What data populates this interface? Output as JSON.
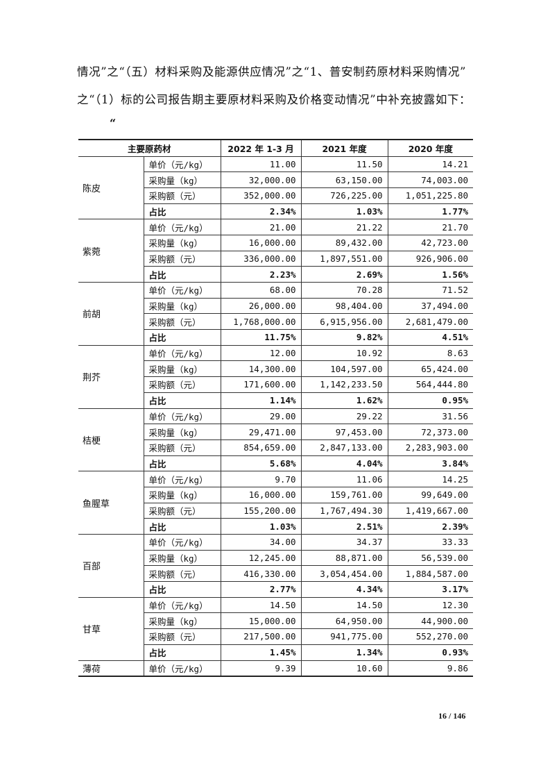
{
  "intro": {
    "line1": "情况”之“（五）材料采购及能源供应情况”之“1、普安制药原材料采购情况”",
    "line2": "之“（1）标的公司报告期主要原材料采购及价格变动情况”中补充披露如下：",
    "open_quote": "“"
  },
  "table": {
    "headers": [
      "主要原药材",
      "2022 年 1-3 月",
      "2021 年度",
      "2020 年度"
    ],
    "groups": [
      {
        "name": "陈皮",
        "rows": [
          {
            "metric": "单价（元/kg）",
            "values": [
              "11.00",
              "11.50",
              "14.21"
            ]
          },
          {
            "metric": "采购量（kg）",
            "values": [
              "32,000.00",
              "63,150.00",
              "74,003.00"
            ]
          },
          {
            "metric": "采购额（元）",
            "values": [
              "352,000.00",
              "726,225.00",
              "1,051,225.80"
            ]
          },
          {
            "metric": "占比",
            "values": [
              "2.34%",
              "1.03%",
              "1.77%"
            ],
            "bold": true
          }
        ]
      },
      {
        "name": "紫菀",
        "rows": [
          {
            "metric": "单价（元/kg）",
            "values": [
              "21.00",
              "21.22",
              "21.70"
            ]
          },
          {
            "metric": "采购量（kg）",
            "values": [
              "16,000.00",
              "89,432.00",
              "42,723.00"
            ]
          },
          {
            "metric": "采购额（元）",
            "values": [
              "336,000.00",
              "1,897,551.00",
              "926,906.00"
            ]
          },
          {
            "metric": "占比",
            "values": [
              "2.23%",
              "2.69%",
              "1.56%"
            ],
            "bold": true
          }
        ]
      },
      {
        "name": "前胡",
        "rows": [
          {
            "metric": "单价（元/kg）",
            "values": [
              "68.00",
              "70.28",
              "71.52"
            ]
          },
          {
            "metric": "采购量（kg）",
            "values": [
              "26,000.00",
              "98,404.00",
              "37,494.00"
            ]
          },
          {
            "metric": "采购额（元）",
            "values": [
              "1,768,000.00",
              "6,915,956.00",
              "2,681,479.00"
            ]
          },
          {
            "metric": "占比",
            "values": [
              "11.75%",
              "9.82%",
              "4.51%"
            ],
            "bold": true
          }
        ]
      },
      {
        "name": "荆芥",
        "rows": [
          {
            "metric": "单价（元/kg）",
            "values": [
              "12.00",
              "10.92",
              "8.63"
            ]
          },
          {
            "metric": "采购量（kg）",
            "values": [
              "14,300.00",
              "104,597.00",
              "65,424.00"
            ]
          },
          {
            "metric": "采购额（元）",
            "values": [
              "171,600.00",
              "1,142,233.50",
              "564,444.80"
            ]
          },
          {
            "metric": "占比",
            "values": [
              "1.14%",
              "1.62%",
              "0.95%"
            ],
            "bold": true
          }
        ]
      },
      {
        "name": "桔梗",
        "rows": [
          {
            "metric": "单价（元/kg）",
            "values": [
              "29.00",
              "29.22",
              "31.56"
            ]
          },
          {
            "metric": "采购量（kg）",
            "values": [
              "29,471.00",
              "97,453.00",
              "72,373.00"
            ]
          },
          {
            "metric": "采购额（元）",
            "values": [
              "854,659.00",
              "2,847,133.00",
              "2,283,903.00"
            ]
          },
          {
            "metric": "占比",
            "values": [
              "5.68%",
              "4.04%",
              "3.84%"
            ],
            "bold": true
          }
        ]
      },
      {
        "name": "鱼腥草",
        "rows": [
          {
            "metric": "单价（元/kg）",
            "values": [
              "9.70",
              "11.06",
              "14.25"
            ]
          },
          {
            "metric": "采购量（kg）",
            "values": [
              "16,000.00",
              "159,761.00",
              "99,649.00"
            ]
          },
          {
            "metric": "采购额（元）",
            "values": [
              "155,200.00",
              "1,767,494.30",
              "1,419,667.00"
            ]
          },
          {
            "metric": "占比",
            "values": [
              "1.03%",
              "2.51%",
              "2.39%"
            ],
            "bold": true
          }
        ]
      },
      {
        "name": "百部",
        "rows": [
          {
            "metric": "单价（元/kg）",
            "values": [
              "34.00",
              "34.37",
              "33.33"
            ]
          },
          {
            "metric": "采购量（kg）",
            "values": [
              "12,245.00",
              "88,871.00",
              "56,539.00"
            ]
          },
          {
            "metric": "采购额（元）",
            "values": [
              "416,330.00",
              "3,054,454.00",
              "1,884,587.00"
            ]
          },
          {
            "metric": "占比",
            "values": [
              "2.77%",
              "4.34%",
              "3.17%"
            ],
            "bold": true
          }
        ]
      },
      {
        "name": "甘草",
        "rows": [
          {
            "metric": "单价（元/kg）",
            "values": [
              "14.50",
              "14.50",
              "12.30"
            ]
          },
          {
            "metric": "采购量（kg）",
            "values": [
              "15,000.00",
              "64,950.00",
              "44,900.00"
            ]
          },
          {
            "metric": "采购额（元）",
            "values": [
              "217,500.00",
              "941,775.00",
              "552,270.00"
            ]
          },
          {
            "metric": "占比",
            "values": [
              "1.45%",
              "1.34%",
              "0.93%"
            ],
            "bold": true
          }
        ]
      },
      {
        "name": "薄荷",
        "rows": [
          {
            "metric": "单价（元/kg）",
            "values": [
              "9.39",
              "10.60",
              "9.86"
            ]
          }
        ]
      }
    ]
  },
  "footer": {
    "page_number": "16 / 146"
  }
}
